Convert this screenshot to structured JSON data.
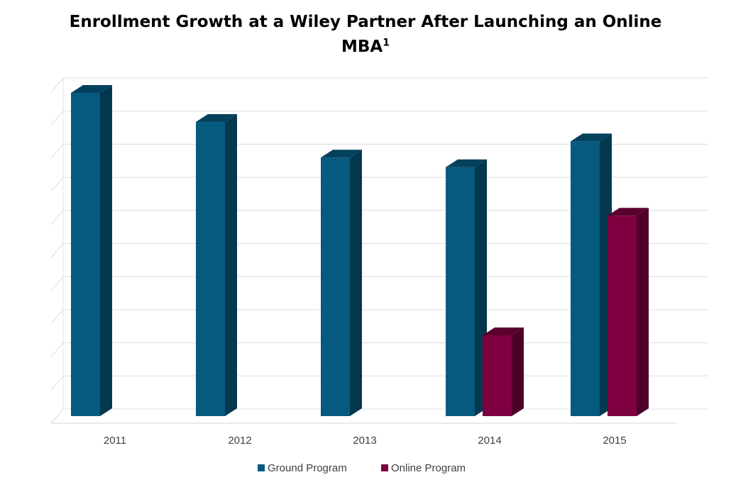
{
  "chart_data": {
    "type": "bar",
    "title_line1": "Enrollment Growth at a Wiley Partner After Launching an Online",
    "title_line2": "MBA",
    "title_sup": "1",
    "categories": [
      "2011",
      "2012",
      "2013",
      "2014",
      "2015"
    ],
    "series": [
      {
        "name": "Ground Program",
        "color": "#065a80",
        "values": [
          100,
          91,
          80,
          77,
          85
        ]
      },
      {
        "name": "Online Program",
        "color": "#7e0040",
        "values": [
          null,
          null,
          null,
          25,
          62
        ]
      }
    ],
    "ylim": [
      0,
      100
    ],
    "y_tick_labels_shown": false,
    "grid": true,
    "three_d": true,
    "legend_position": "bottom"
  }
}
